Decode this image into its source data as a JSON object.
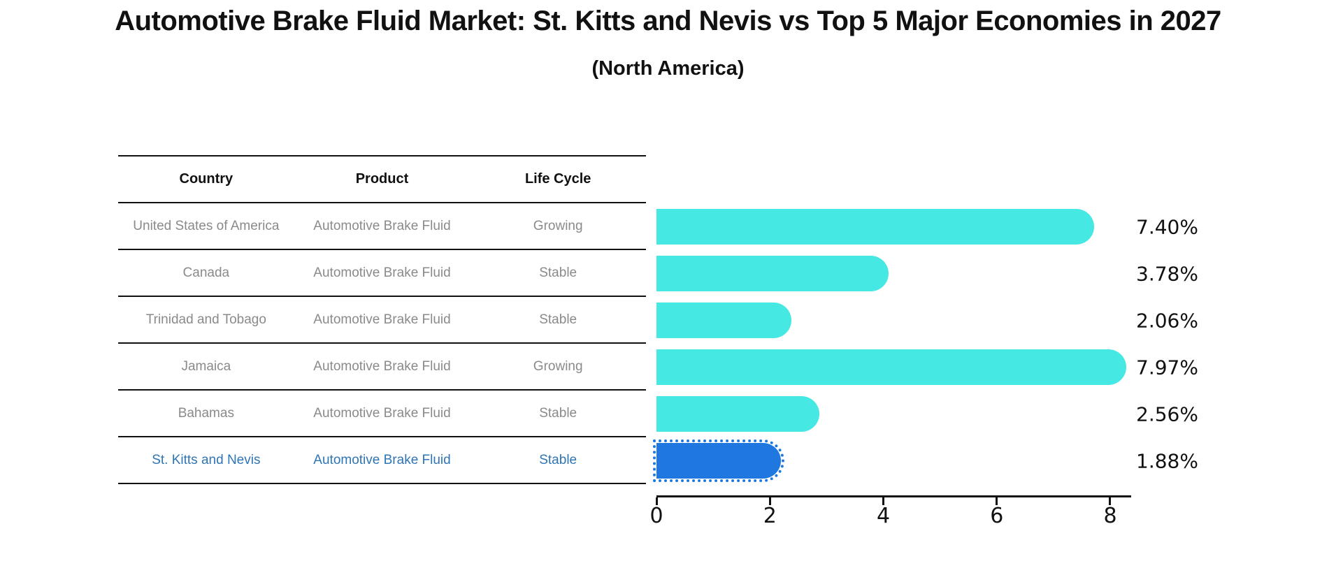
{
  "title": {
    "text": "Automotive Brake Fluid Market: St. Kitts and Nevis vs Top 5 Major Economies in 2027",
    "subtitle": "(North America)"
  },
  "table": {
    "headers": [
      "Country",
      "Product",
      "Life Cycle"
    ],
    "rows": [
      {
        "country": "United States of America",
        "product": "Automotive Brake Fluid",
        "life_cycle": "Growing",
        "highlighted": false
      },
      {
        "country": "Canada",
        "product": "Automotive Brake Fluid",
        "life_cycle": "Stable",
        "highlighted": false
      },
      {
        "country": "Trinidad and Tobago",
        "product": "Automotive Brake Fluid",
        "life_cycle": "Stable",
        "highlighted": false
      },
      {
        "country": "Jamaica",
        "product": "Automotive Brake Fluid",
        "life_cycle": "Growing",
        "highlighted": false
      },
      {
        "country": "Bahamas",
        "product": "Automotive Brake Fluid",
        "life_cycle": "Stable",
        "highlighted": false
      },
      {
        "country": "St. Kitts and Nevis",
        "product": "Automotive Brake Fluid",
        "life_cycle": "Stable",
        "highlighted": true
      }
    ]
  },
  "chart_data": {
    "type": "bar",
    "orientation": "horizontal",
    "title": "Automotive Brake Fluid Market: St. Kitts and Nevis vs Top 5 Major Economies in 2027",
    "subtitle": "(North America)",
    "categories": [
      "United States of America",
      "Canada",
      "Trinidad and Tobago",
      "Jamaica",
      "Bahamas",
      "St. Kitts and Nevis"
    ],
    "values": [
      7.4,
      3.78,
      2.06,
      7.97,
      2.56,
      1.88
    ],
    "value_labels": [
      "7.40%",
      "3.78%",
      "2.06%",
      "7.97%",
      "2.56%",
      "1.88%"
    ],
    "xticks": [
      0,
      2,
      4,
      6,
      8
    ],
    "xlim": [
      0,
      8.37
    ],
    "grid": false,
    "legend": false,
    "highlight_index": 5
  },
  "colors": {
    "bar": "#45E8E2",
    "highlight_bar": "#1E78E0",
    "highlight_text": "#2E75B6",
    "row_text": "#8A8A8A",
    "header_text": "#111111",
    "axis": "#111111"
  }
}
